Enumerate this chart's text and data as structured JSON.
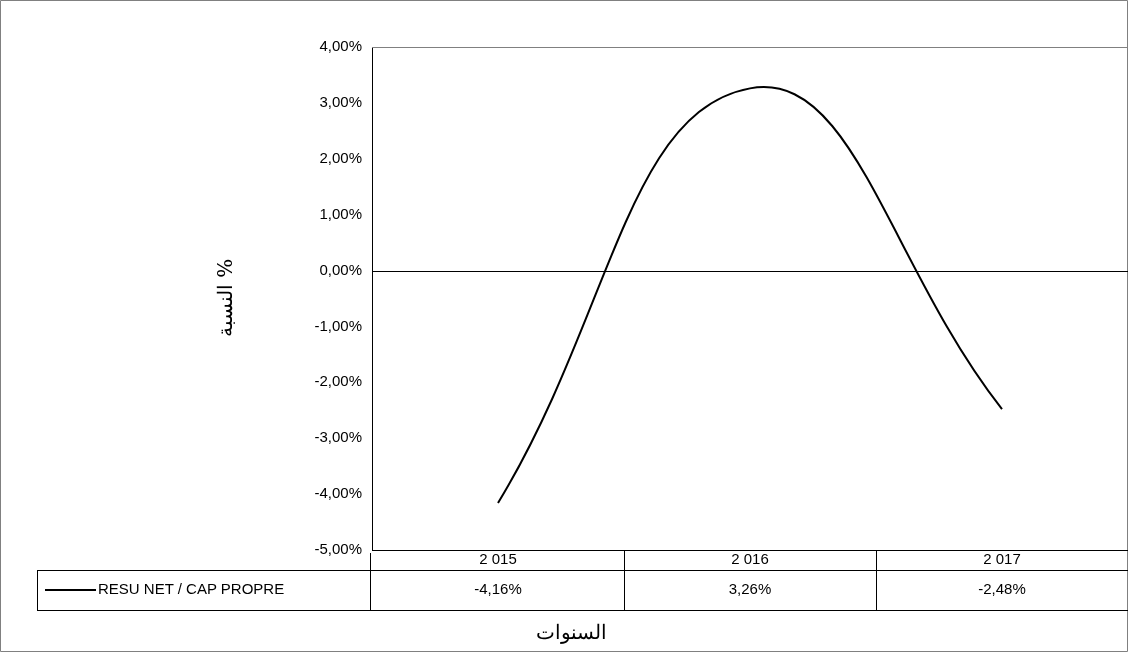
{
  "chart_data": {
    "type": "line",
    "xlabel": "السنوات",
    "ylabel": "النسبة %",
    "categories": [
      "2 015",
      "2 016",
      "2 017"
    ],
    "series": [
      {
        "name": "RESU NET / CAP PROPRE",
        "color": "#000000",
        "values": [
          -4.16,
          3.26,
          -2.48
        ],
        "value_labels": [
          "-4,16%",
          "3,26%",
          "-2,48%"
        ]
      }
    ],
    "ylim": [
      -5,
      4
    ],
    "yticks": [
      {
        "value": -5,
        "label": "-5,00%"
      },
      {
        "value": -4,
        "label": "-4,00%"
      },
      {
        "value": -3,
        "label": "-3,00%"
      },
      {
        "value": -2,
        "label": "-2,00%"
      },
      {
        "value": -1,
        "label": "-1,00%"
      },
      {
        "value": 0,
        "label": "0,00%"
      },
      {
        "value": 1,
        "label": "1,00%"
      },
      {
        "value": 2,
        "label": "2,00%"
      },
      {
        "value": 3,
        "label": "3,00%"
      },
      {
        "value": 4,
        "label": "4,00%"
      }
    ],
    "ref_lines": [
      {
        "axis": "y",
        "value": 0,
        "color": "#000000"
      }
    ],
    "grid": false,
    "legend": "bottom left",
    "marker": "none",
    "line_style": "solid"
  }
}
